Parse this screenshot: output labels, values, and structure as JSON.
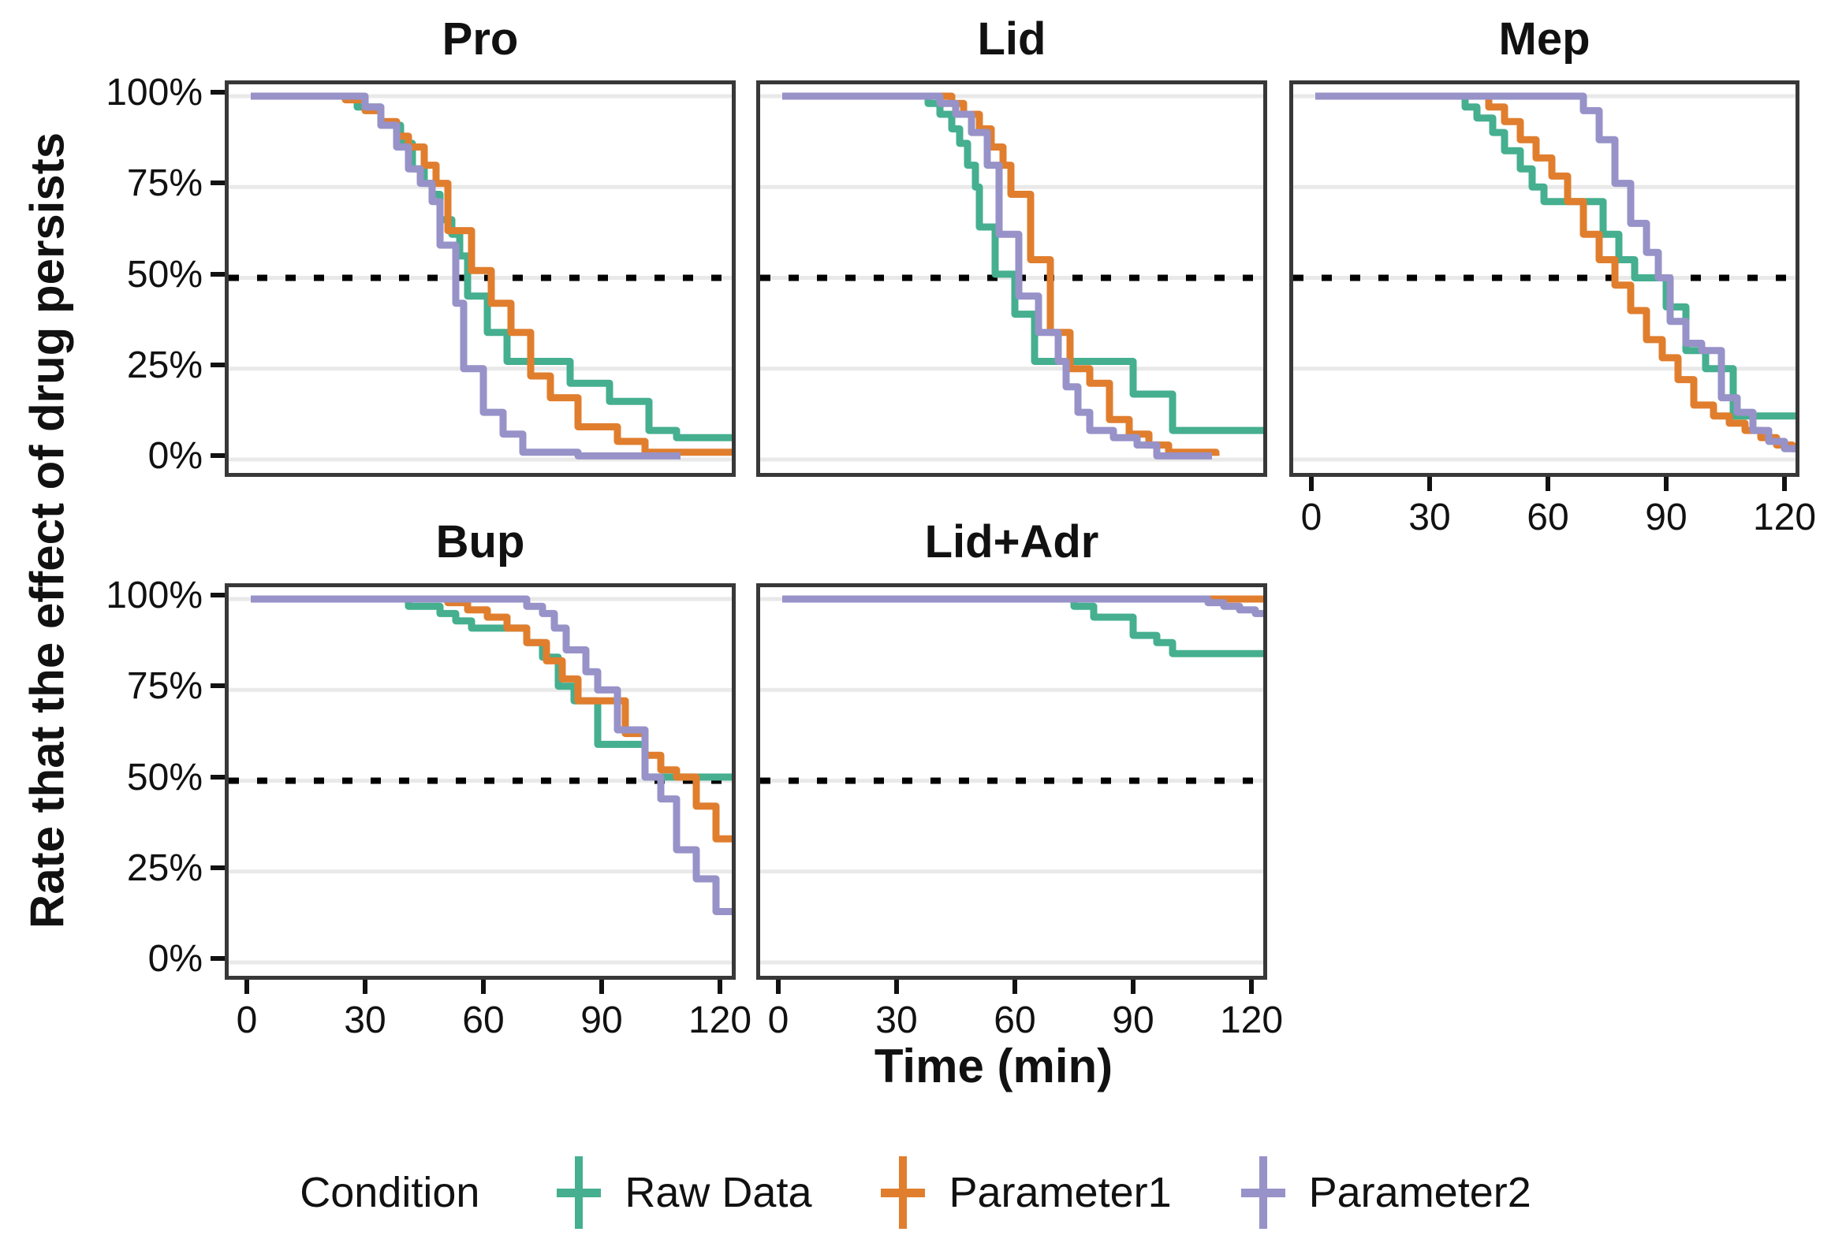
{
  "figure": {
    "y_axis_title": "Rate that the effect of drug persists",
    "x_axis_title": "Time (min)",
    "background": "#FFFFFF",
    "grid_color": "#E9E9E9",
    "panel_border_color": "#383838",
    "reference_line": {
      "value": 50,
      "style": "dotted",
      "color": "#000000"
    },
    "y_ticks": [
      {
        "value": 100,
        "label": "100%"
      },
      {
        "value": 75,
        "label": "75%"
      },
      {
        "value": 50,
        "label": "50%"
      },
      {
        "value": 25,
        "label": "25%"
      },
      {
        "value": 0,
        "label": "0%"
      }
    ],
    "x_ticks": [
      {
        "value": 0,
        "label": "0"
      },
      {
        "value": 30,
        "label": "30"
      },
      {
        "value": 60,
        "label": "60"
      },
      {
        "value": 90,
        "label": "90"
      },
      {
        "value": 120,
        "label": "120"
      }
    ]
  },
  "legend": {
    "title": "Condition",
    "entries": [
      {
        "label": "Raw Data",
        "color": "#45AF8F"
      },
      {
        "label": "Parameter1",
        "color": "#E07E2E"
      },
      {
        "label": "Parameter2",
        "color": "#9792C8"
      }
    ]
  },
  "chart_data": [
    {
      "type": "line",
      "subtype": "step-survival",
      "title": "Pro",
      "xlabel": "Time (min)",
      "ylabel": "Rate that the effect of drug persists",
      "xlim": [
        -6,
        126
      ],
      "ylim": [
        0,
        100
      ],
      "x_ticks": [
        0,
        30,
        60,
        90,
        120
      ],
      "y_ticks": [
        0,
        25,
        50,
        75,
        100
      ],
      "show_y_axis": true,
      "show_x_axis": false,
      "reference_pct": 50,
      "series": [
        {
          "name": "Raw Data",
          "color": "#45AF8F",
          "points": [
            [
              0,
              100
            ],
            [
              27,
              97
            ],
            [
              33,
              92
            ],
            [
              38,
              87
            ],
            [
              41,
              80
            ],
            [
              44,
              76
            ],
            [
              46,
              73
            ],
            [
              48,
              66
            ],
            [
              51,
              62
            ],
            [
              53,
              56
            ],
            [
              55,
              45
            ],
            [
              60,
              35
            ],
            [
              65,
              27
            ],
            [
              81,
              21
            ],
            [
              91,
              16
            ],
            [
              101,
              8
            ],
            [
              108,
              6
            ],
            [
              125,
              6
            ]
          ]
        },
        {
          "name": "Parameter1",
          "color": "#E07E2E",
          "points": [
            [
              0,
              100
            ],
            [
              24,
              99
            ],
            [
              29,
              96
            ],
            [
              33,
              93
            ],
            [
              37,
              89
            ],
            [
              40,
              86
            ],
            [
              44,
              81
            ],
            [
              47,
              76
            ],
            [
              50,
              63
            ],
            [
              56,
              52
            ],
            [
              61,
              43
            ],
            [
              66,
              35
            ],
            [
              71,
              23
            ],
            [
              76,
              17
            ],
            [
              83,
              9
            ],
            [
              93,
              5
            ],
            [
              100,
              2
            ],
            [
              125,
              2
            ]
          ]
        },
        {
          "name": "Parameter2",
          "color": "#9792C8",
          "points": [
            [
              0,
              100
            ],
            [
              29,
              97
            ],
            [
              33,
              92
            ],
            [
              37,
              86
            ],
            [
              40,
              80
            ],
            [
              43,
              76
            ],
            [
              46,
              71
            ],
            [
              48,
              59
            ],
            [
              52,
              43
            ],
            [
              54,
              25
            ],
            [
              59,
              13
            ],
            [
              64,
              7
            ],
            [
              69,
              2
            ],
            [
              83,
              1
            ],
            [
              109,
              1
            ]
          ]
        }
      ]
    },
    {
      "type": "line",
      "subtype": "step-survival",
      "title": "Lid",
      "xlabel": "Time (min)",
      "ylabel": "Rate that the effect of drug persists",
      "xlim": [
        -6,
        126
      ],
      "ylim": [
        0,
        100
      ],
      "x_ticks": [
        0,
        30,
        60,
        90,
        120
      ],
      "y_ticks": [
        0,
        25,
        50,
        75,
        100
      ],
      "show_y_axis": false,
      "show_x_axis": false,
      "reference_pct": 50,
      "series": [
        {
          "name": "Raw Data",
          "color": "#45AF8F",
          "points": [
            [
              0,
              100
            ],
            [
              37,
              98
            ],
            [
              40,
              95
            ],
            [
              43,
              91
            ],
            [
              45,
              87
            ],
            [
              47,
              81
            ],
            [
              49,
              75
            ],
            [
              50,
              64
            ],
            [
              54,
              51
            ],
            [
              59,
              40
            ],
            [
              64,
              27
            ],
            [
              89,
              18
            ],
            [
              99,
              8
            ],
            [
              124,
              8
            ]
          ]
        },
        {
          "name": "Parameter1",
          "color": "#E07E2E",
          "points": [
            [
              0,
              100
            ],
            [
              43,
              98
            ],
            [
              46,
              95
            ],
            [
              50,
              91
            ],
            [
              53,
              86
            ],
            [
              56,
              81
            ],
            [
              58,
              73
            ],
            [
              63,
              55
            ],
            [
              68,
              35
            ],
            [
              73,
              25
            ],
            [
              78,
              21
            ],
            [
              83,
              11
            ],
            [
              88,
              7
            ],
            [
              93,
              4
            ],
            [
              98,
              2
            ],
            [
              110,
              1
            ]
          ]
        },
        {
          "name": "Parameter2",
          "color": "#9792C8",
          "points": [
            [
              0,
              100
            ],
            [
              40,
              98
            ],
            [
              44,
              95
            ],
            [
              48,
              90
            ],
            [
              52,
              81
            ],
            [
              55,
              62
            ],
            [
              60,
              45
            ],
            [
              65,
              35
            ],
            [
              70,
              27
            ],
            [
              72,
              20
            ],
            [
              75,
              13
            ],
            [
              78,
              8
            ],
            [
              84,
              6
            ],
            [
              90,
              4
            ],
            [
              95,
              1
            ],
            [
              109,
              1
            ]
          ]
        }
      ]
    },
    {
      "type": "line",
      "subtype": "step-survival",
      "title": "Mep",
      "xlabel": "Time (min)",
      "ylabel": "Rate that the effect of drug persists",
      "xlim": [
        -6,
        126
      ],
      "ylim": [
        0,
        100
      ],
      "x_ticks": [
        0,
        30,
        60,
        90,
        120
      ],
      "y_ticks": [
        0,
        25,
        50,
        75,
        100
      ],
      "show_y_axis": false,
      "show_x_axis": true,
      "reference_pct": 50,
      "series": [
        {
          "name": "Raw Data",
          "color": "#45AF8F",
          "points": [
            [
              0,
              100
            ],
            [
              38,
              97
            ],
            [
              41,
              94
            ],
            [
              45,
              90
            ],
            [
              48,
              85
            ],
            [
              52,
              80
            ],
            [
              55,
              75
            ],
            [
              58,
              71
            ],
            [
              73,
              62
            ],
            [
              77,
              55
            ],
            [
              81,
              50
            ],
            [
              89,
              42
            ],
            [
              94,
              30
            ],
            [
              99,
              25
            ],
            [
              106,
              12
            ],
            [
              124,
              12
            ]
          ]
        },
        {
          "name": "Parameter1",
          "color": "#E07E2E",
          "points": [
            [
              0,
              100
            ],
            [
              44,
              97
            ],
            [
              48,
              93
            ],
            [
              52,
              88
            ],
            [
              56,
              83
            ],
            [
              60,
              78
            ],
            [
              64,
              71
            ],
            [
              68,
              62
            ],
            [
              72,
              55
            ],
            [
              76,
              48
            ],
            [
              80,
              41
            ],
            [
              84,
              33
            ],
            [
              88,
              28
            ],
            [
              92,
              22
            ],
            [
              96,
              15
            ],
            [
              101,
              12
            ],
            [
              105,
              10
            ],
            [
              109,
              8
            ],
            [
              113,
              6
            ],
            [
              117,
              4
            ],
            [
              121,
              3
            ],
            [
              125,
              2
            ]
          ]
        },
        {
          "name": "Parameter2",
          "color": "#9792C8",
          "points": [
            [
              0,
              100
            ],
            [
              68,
              96
            ],
            [
              72,
              88
            ],
            [
              76,
              76
            ],
            [
              80,
              65
            ],
            [
              84,
              57
            ],
            [
              87,
              50
            ],
            [
              90,
              38
            ],
            [
              94,
              32
            ],
            [
              98,
              30
            ],
            [
              103,
              17
            ],
            [
              107,
              13
            ],
            [
              111,
              8
            ],
            [
              115,
              5
            ],
            [
              119,
              3
            ],
            [
              125,
              2
            ]
          ]
        }
      ]
    },
    {
      "type": "line",
      "subtype": "step-survival",
      "title": "Bup",
      "xlabel": "Time (min)",
      "ylabel": "Rate that the effect of drug persists",
      "xlim": [
        -6,
        126
      ],
      "ylim": [
        0,
        100
      ],
      "x_ticks": [
        0,
        30,
        60,
        90,
        120
      ],
      "y_ticks": [
        0,
        25,
        50,
        75,
        100
      ],
      "show_y_axis": true,
      "show_x_axis": true,
      "reference_pct": 50,
      "series": [
        {
          "name": "Raw Data",
          "color": "#45AF8F",
          "points": [
            [
              0,
              100
            ],
            [
              40,
              98
            ],
            [
              48,
              96
            ],
            [
              52,
              94
            ],
            [
              56,
              92
            ],
            [
              70,
              88
            ],
            [
              74,
              84
            ],
            [
              78,
              76
            ],
            [
              82,
              72
            ],
            [
              88,
              60
            ],
            [
              100,
              51
            ],
            [
              125,
              51
            ]
          ]
        },
        {
          "name": "Parameter1",
          "color": "#E07E2E",
          "points": [
            [
              0,
              100
            ],
            [
              50,
              99
            ],
            [
              55,
              97
            ],
            [
              60,
              95
            ],
            [
              65,
              92
            ],
            [
              70,
              88
            ],
            [
              75,
              83
            ],
            [
              79,
              78
            ],
            [
              83,
              72
            ],
            [
              95,
              63
            ],
            [
              100,
              57
            ],
            [
              104,
              53
            ],
            [
              108,
              51
            ],
            [
              113,
              43
            ],
            [
              118,
              34
            ],
            [
              125,
              34
            ]
          ]
        },
        {
          "name": "Parameter2",
          "color": "#9792C8",
          "points": [
            [
              0,
              100
            ],
            [
              70,
              98
            ],
            [
              74,
              96
            ],
            [
              77,
              92
            ],
            [
              80,
              86
            ],
            [
              85,
              80
            ],
            [
              88,
              75
            ],
            [
              93,
              64
            ],
            [
              100,
              51
            ],
            [
              104,
              45
            ],
            [
              108,
              31
            ],
            [
              113,
              23
            ],
            [
              118,
              14
            ],
            [
              125,
              14
            ]
          ]
        }
      ]
    },
    {
      "type": "line",
      "subtype": "step-survival",
      "title": "Lid+Adr",
      "xlabel": "Time (min)",
      "ylabel": "Rate that the effect of drug persists",
      "xlim": [
        -6,
        126
      ],
      "ylim": [
        0,
        100
      ],
      "x_ticks": [
        0,
        30,
        60,
        90,
        120
      ],
      "y_ticks": [
        0,
        25,
        50,
        75,
        100
      ],
      "show_y_axis": false,
      "show_x_axis": true,
      "reference_pct": 50,
      "series": [
        {
          "name": "Raw Data",
          "color": "#45AF8F",
          "points": [
            [
              0,
              100
            ],
            [
              74,
              98
            ],
            [
              79,
              95
            ],
            [
              89,
              90
            ],
            [
              95,
              88
            ],
            [
              99,
              85
            ],
            [
              124,
              85
            ]
          ]
        },
        {
          "name": "Parameter1",
          "color": "#E07E2E",
          "points": [
            [
              0,
              100
            ],
            [
              125,
              100
            ]
          ]
        },
        {
          "name": "Parameter2",
          "color": "#9792C8",
          "points": [
            [
              0,
              100
            ],
            [
              108,
              99
            ],
            [
              112,
              98
            ],
            [
              116,
              97
            ],
            [
              120,
              96
            ],
            [
              125,
              96
            ]
          ]
        }
      ]
    }
  ]
}
